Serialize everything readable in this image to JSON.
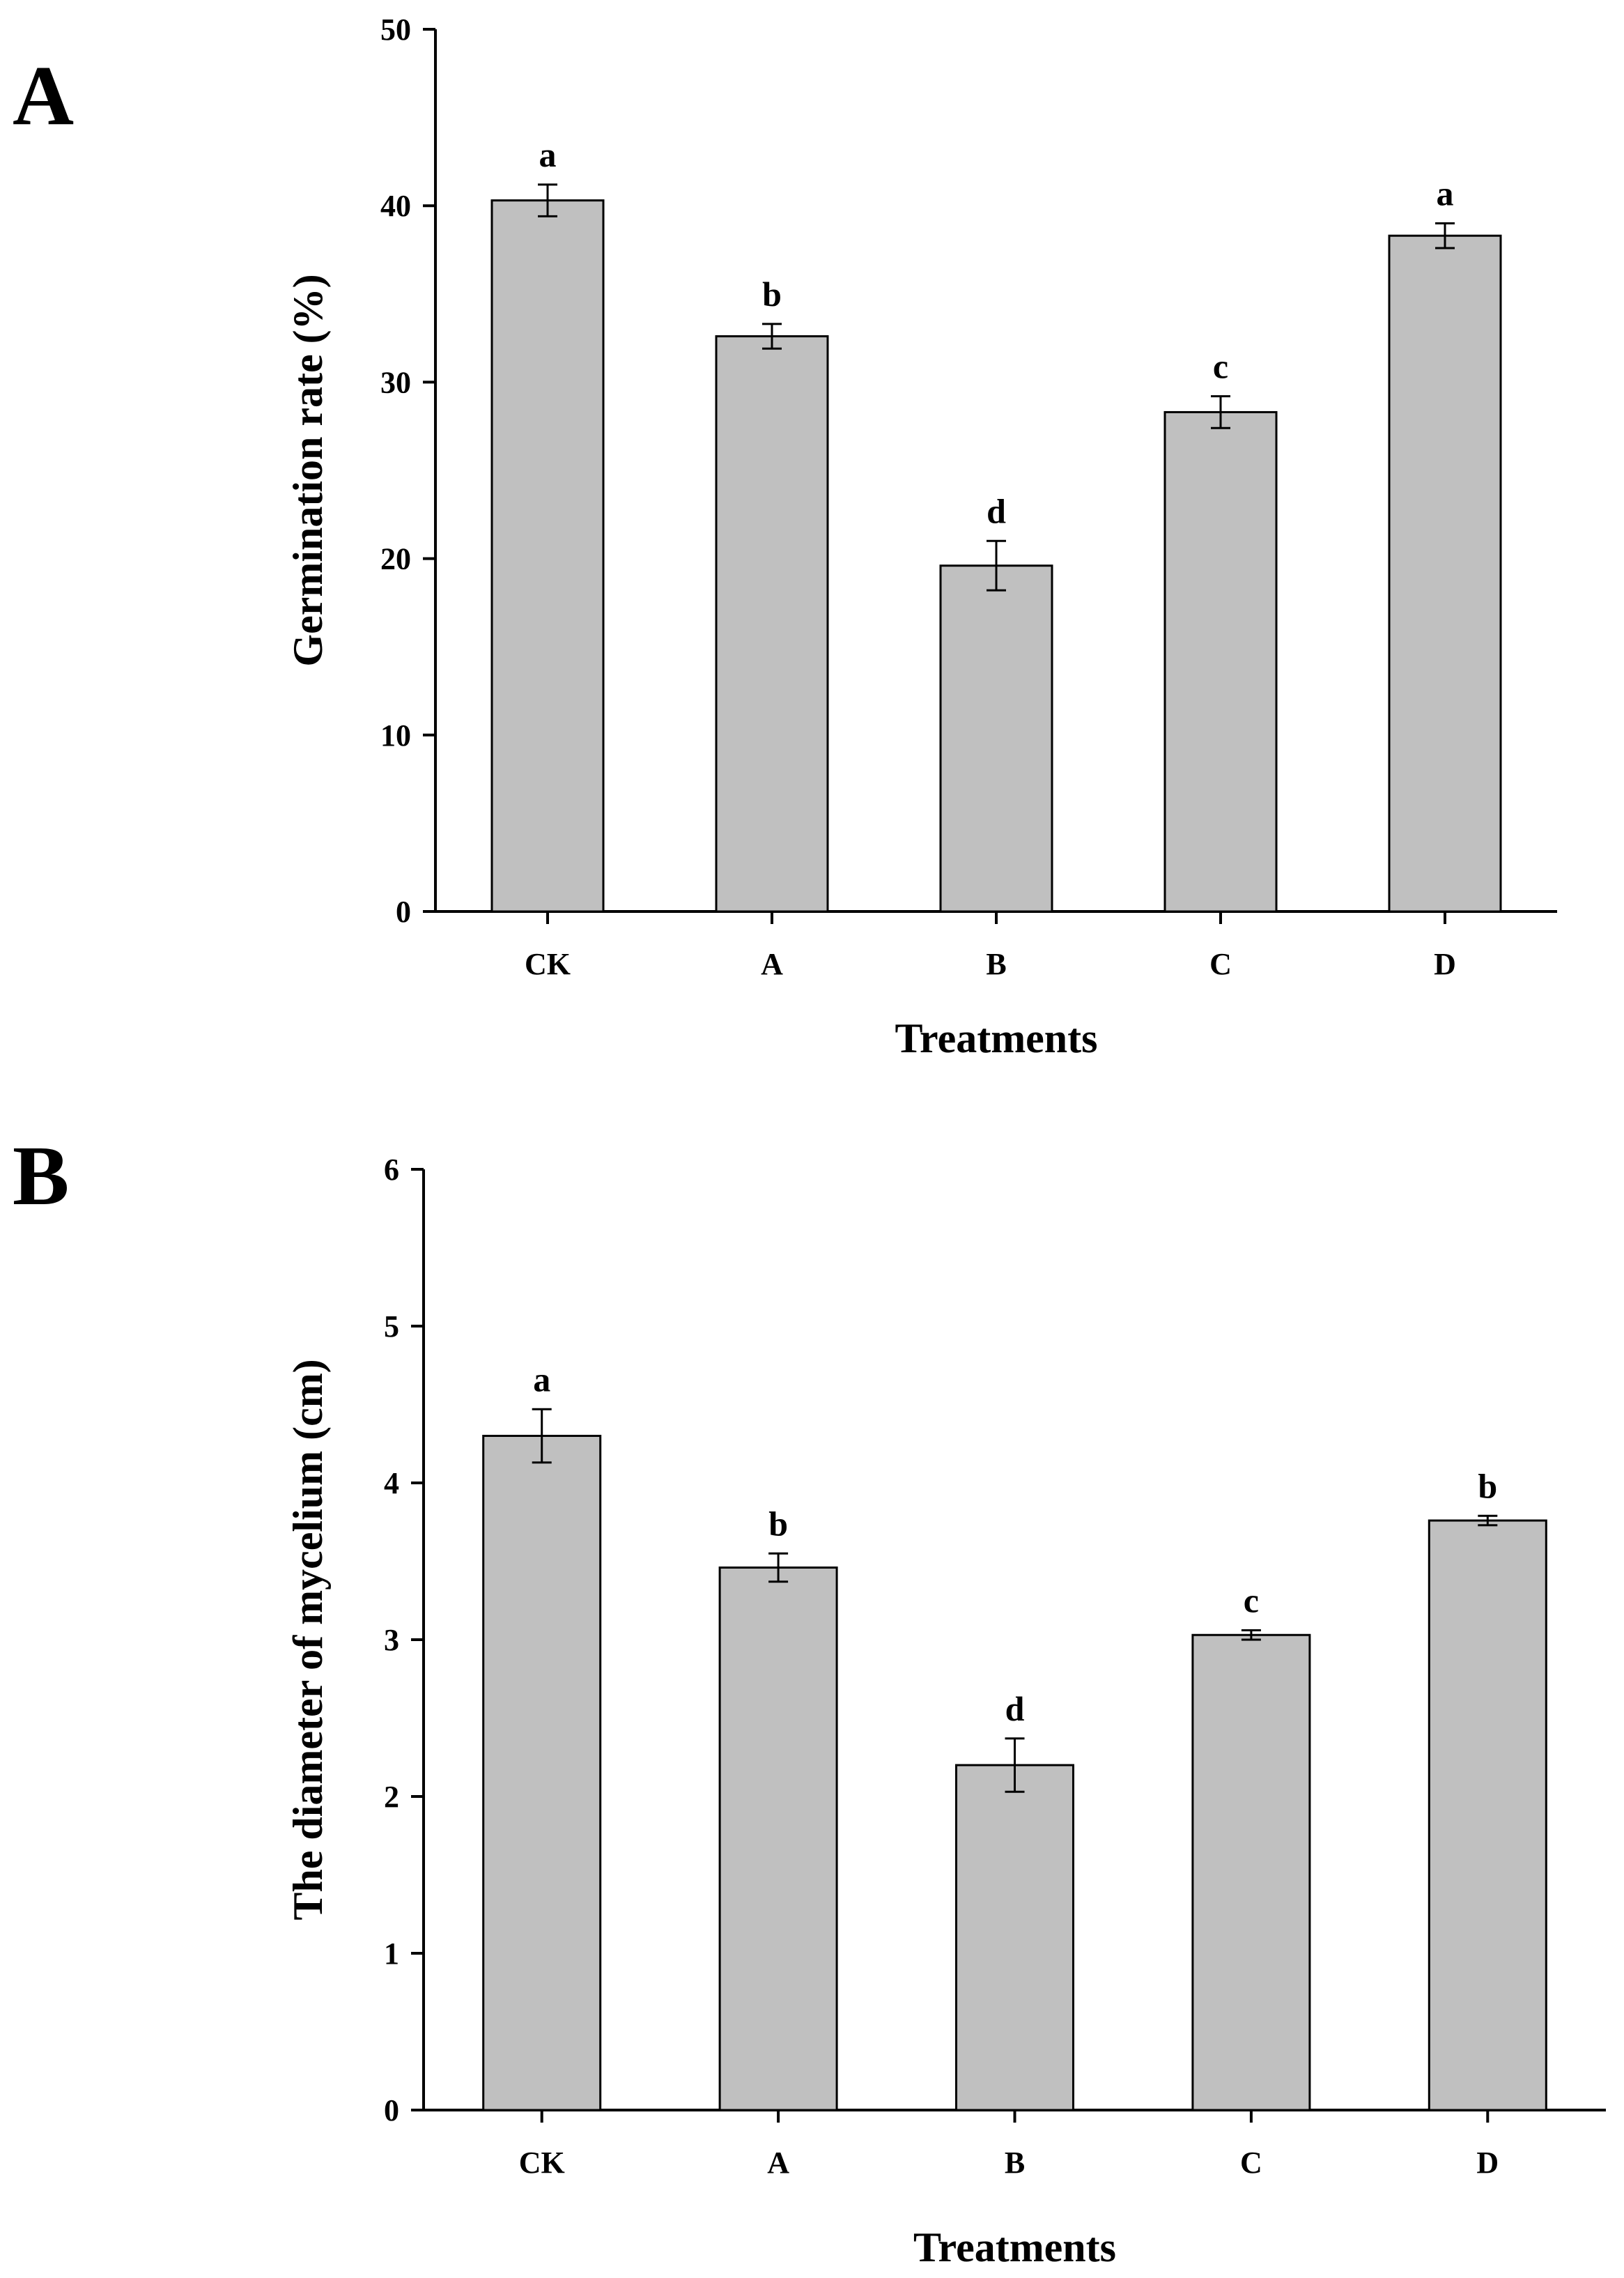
{
  "panels": [
    {
      "label": "A",
      "chart_data": {
        "type": "bar",
        "categories": [
          "CK",
          "A",
          "B",
          "C",
          "D"
        ],
        "values": [
          40.3,
          32.6,
          19.6,
          28.3,
          38.3
        ],
        "errors": [
          0.9,
          0.7,
          1.4,
          0.9,
          0.7
        ],
        "significance": [
          "a",
          "b",
          "d",
          "c",
          "a"
        ],
        "xlabel": "Treatments",
        "ylabel": "Germination rate (%)",
        "ylim": [
          0,
          50
        ],
        "yticks": [
          0,
          10,
          20,
          30,
          40,
          50
        ],
        "bar_color": "#c0c0c0"
      }
    },
    {
      "label": "B",
      "chart_data": {
        "type": "bar",
        "categories": [
          "CK",
          "A",
          "B",
          "C",
          "D"
        ],
        "values": [
          4.3,
          3.46,
          2.2,
          3.03,
          3.76
        ],
        "errors": [
          0.17,
          0.09,
          0.17,
          0.03,
          0.03
        ],
        "significance": [
          "a",
          "b",
          "d",
          "c",
          "b"
        ],
        "xlabel": "Treatments",
        "ylabel": "The diameter of mycelium (cm)",
        "ylim": [
          0,
          6
        ],
        "yticks": [
          0,
          1,
          2,
          3,
          4,
          5,
          6
        ],
        "bar_color": "#c0c0c0"
      }
    }
  ]
}
